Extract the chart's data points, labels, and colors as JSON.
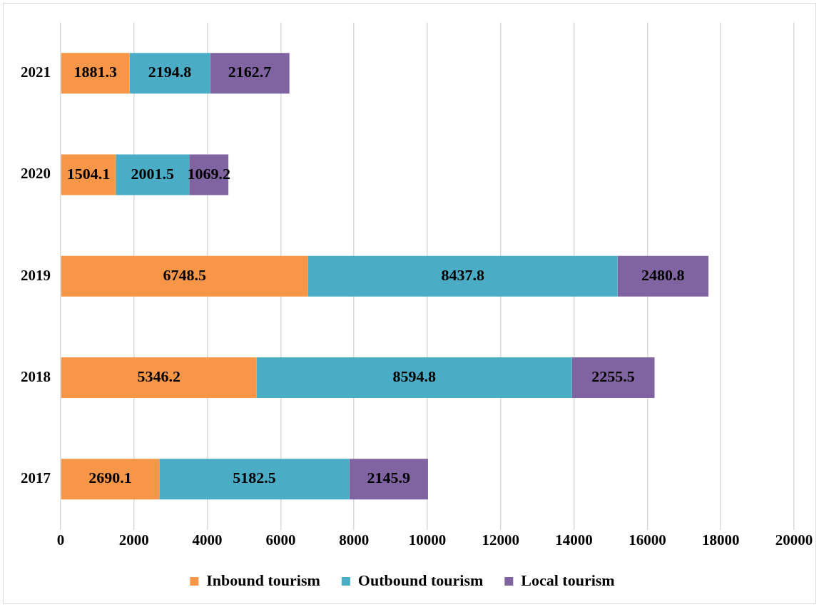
{
  "chart_data": {
    "type": "bar",
    "orientation": "horizontal",
    "stacked": true,
    "categories": [
      "2021",
      "2020",
      "2019",
      "2018",
      "2017"
    ],
    "series": [
      {
        "name": "Inbound tourism",
        "color": "#f79646",
        "values": [
          1881.3,
          1504.1,
          6748.5,
          5346.2,
          2690.1
        ]
      },
      {
        "name": "Outbound tourism",
        "color": "#4bacc6",
        "values": [
          2194.8,
          2001.5,
          8437.8,
          8594.8,
          5182.5
        ]
      },
      {
        "name": "Local tourism",
        "color": "#8064a2",
        "values": [
          2162.7,
          1069.2,
          2480.8,
          2255.5,
          2145.9
        ]
      }
    ],
    "xlim": [
      0,
      20000
    ],
    "xticks": [
      0,
      2000,
      4000,
      6000,
      8000,
      10000,
      12000,
      14000,
      16000,
      18000,
      20000
    ],
    "grid": "x",
    "legend": "bottom",
    "data_labels": true
  }
}
